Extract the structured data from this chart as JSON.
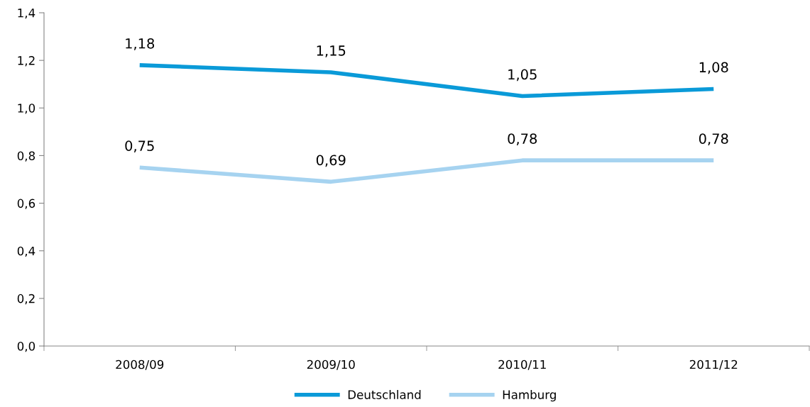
{
  "chart_data": {
    "type": "line",
    "categories": [
      "2008/09",
      "2009/10",
      "2010/11",
      "2011/12"
    ],
    "series": [
      {
        "name": "Deutschland",
        "color": "#0a9ad8",
        "values": [
          1.18,
          1.15,
          1.05,
          1.08
        ],
        "value_labels": [
          "1,18",
          "1,15",
          "1,05",
          "1,08"
        ]
      },
      {
        "name": "Hamburg",
        "color": "#a6d3f0",
        "values": [
          0.75,
          0.69,
          0.78,
          0.78
        ],
        "value_labels": [
          "0,75",
          "0,69",
          "0,78",
          "0,78"
        ]
      }
    ],
    "ylim": [
      0,
      1.4
    ],
    "yticks": [
      {
        "value": 0,
        "label": "0,0"
      },
      {
        "value": 0.2,
        "label": "0,2"
      },
      {
        "value": 0.4,
        "label": "0,4"
      },
      {
        "value": 0.6,
        "label": "0,6"
      },
      {
        "value": 0.8,
        "label": "0,8"
      },
      {
        "value": 1.0,
        "label": "1,0"
      },
      {
        "value": 1.2,
        "label": "1,2"
      },
      {
        "value": 1.4,
        "label": "1,4"
      }
    ],
    "grid": false,
    "legend": "bottom",
    "marker": "none",
    "line_style": "solid"
  }
}
